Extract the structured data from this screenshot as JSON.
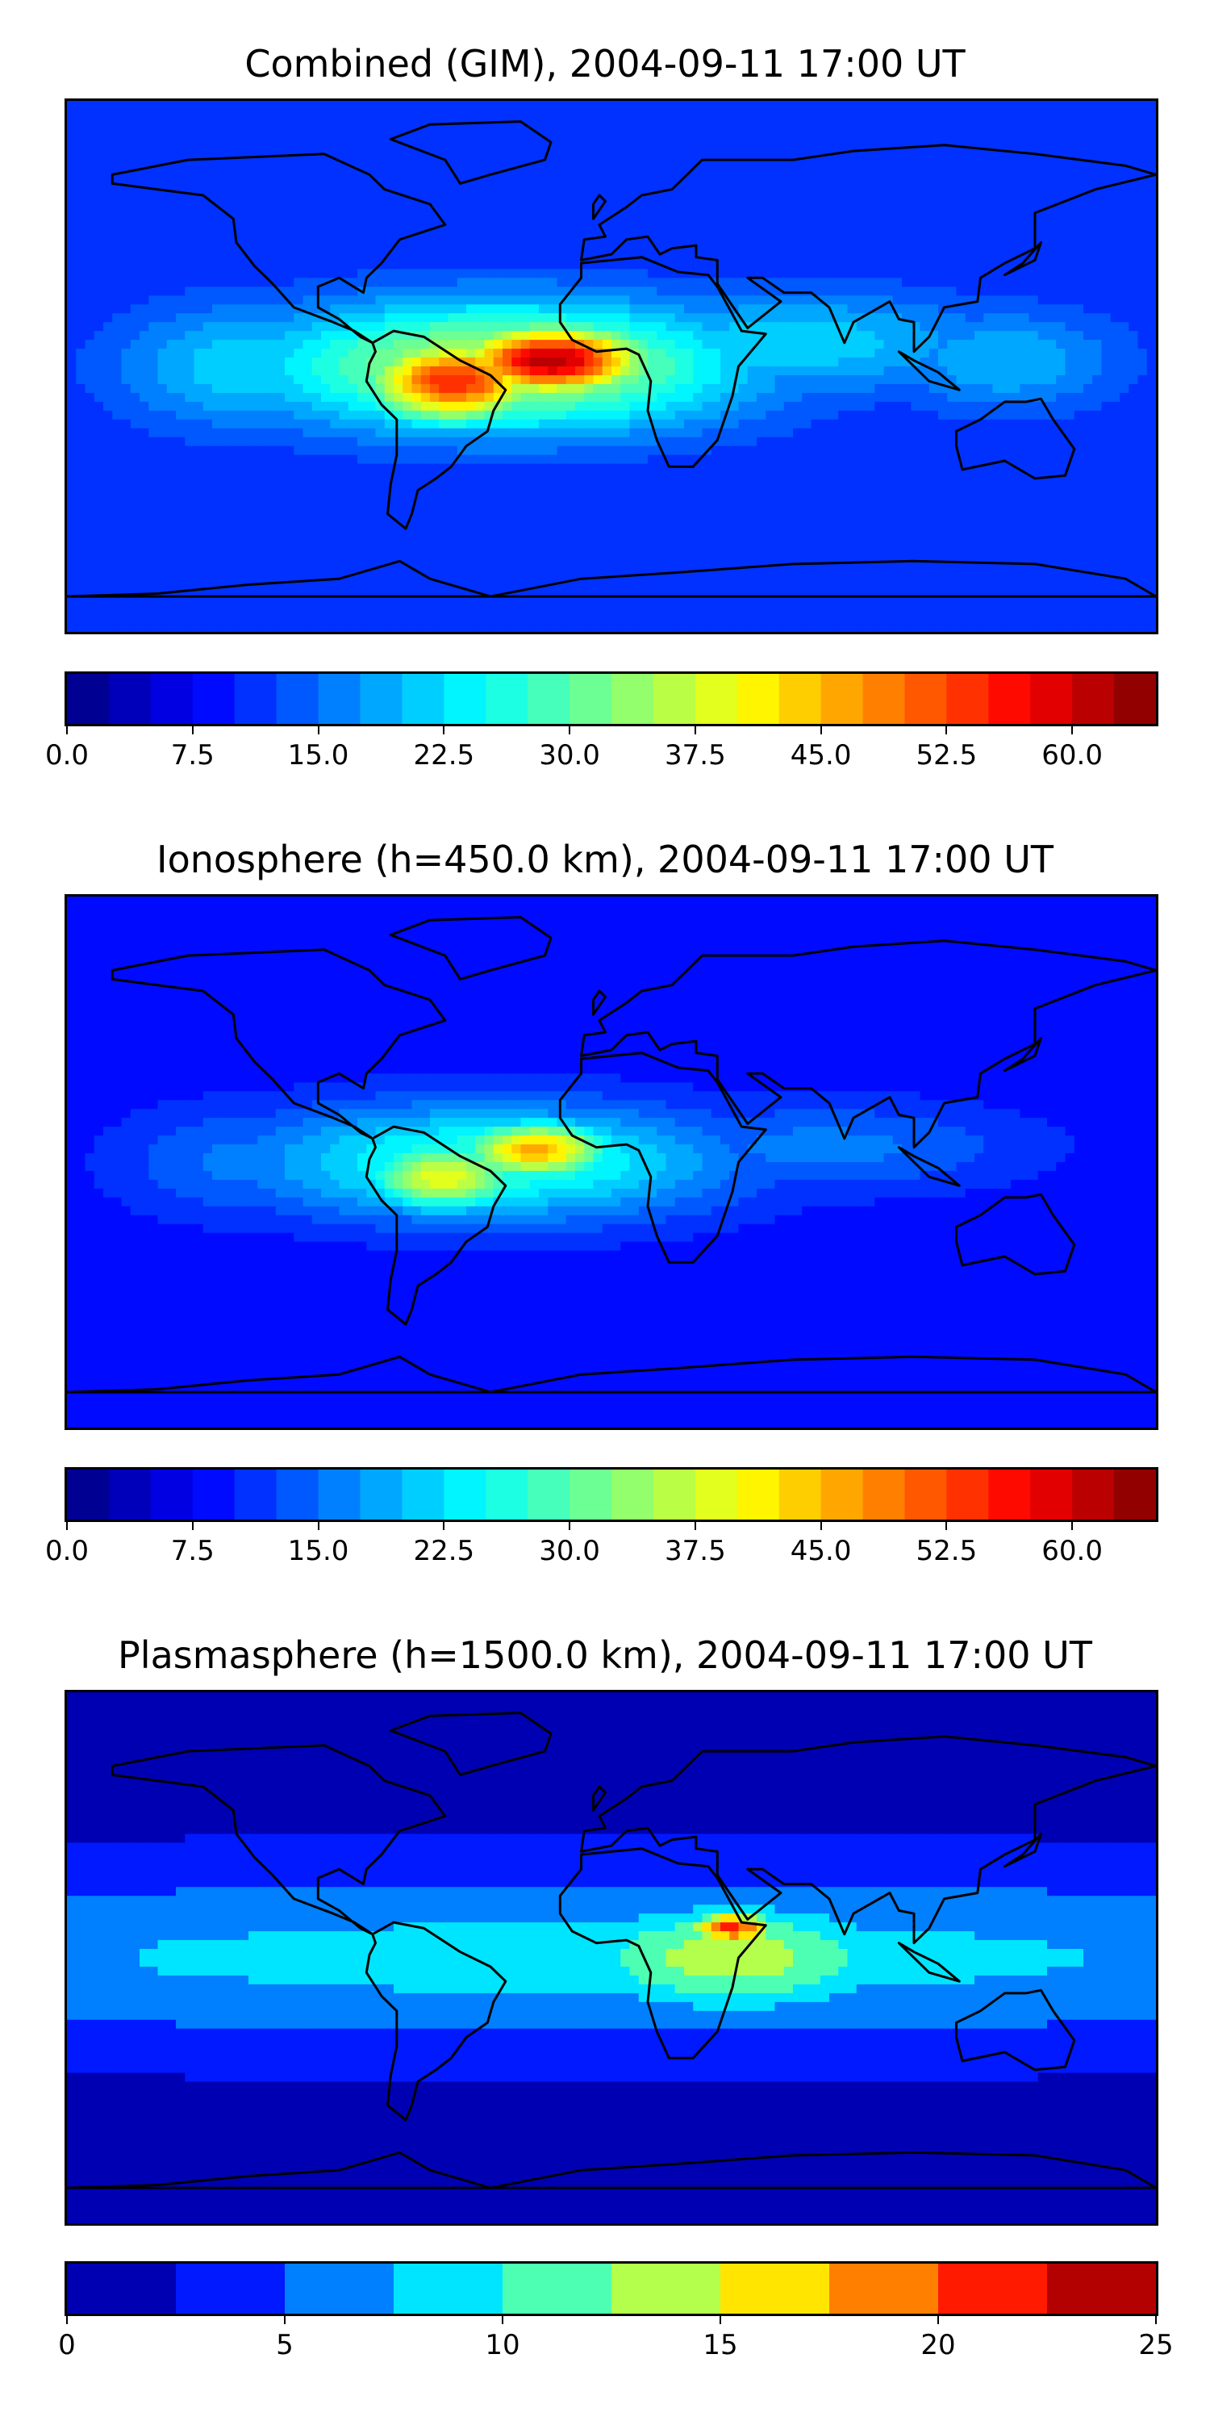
{
  "chart_data": [
    {
      "type": "heatmap",
      "title": "Combined (GIM), 2004-09-11 17:00 UT",
      "xlabel": "",
      "ylabel": "",
      "xlim": [
        -180,
        180
      ],
      "ylim": [
        -90,
        90
      ],
      "grid": false,
      "colorbar": {
        "vmin": 0,
        "vmax": 65,
        "levels": 26,
        "ticks": [
          0,
          7.5,
          15,
          22.5,
          30,
          37.5,
          45,
          52.5,
          60
        ],
        "tick_labels": [
          "0.0",
          "7.5",
          "15.0",
          "22.5",
          "30.0",
          "37.5",
          "45.0",
          "52.5",
          "60.0"
        ],
        "colormap": "jet"
      },
      "background_level": 10,
      "features": [
        {
          "name": "equatorial anomaly crest",
          "lon": -20,
          "lat": 2,
          "value": 62,
          "lon_radius": 32,
          "lat_radius": 12
        },
        {
          "name": "South America maximum",
          "lon": -52,
          "lat": -5,
          "value": 55,
          "lon_radius": 30,
          "lat_radius": 14
        },
        {
          "name": "Atlantic band",
          "lon": -35,
          "lat": 0,
          "value": 38,
          "lon_radius": 80,
          "lat_radius": 22
        },
        {
          "name": "Africa-Indian band",
          "lon": 60,
          "lat": 8,
          "value": 22,
          "lon_radius": 70,
          "lat_radius": 18
        },
        {
          "name": "Maritime Asia band",
          "lon": 130,
          "lat": 2,
          "value": 20,
          "lon_radius": 40,
          "lat_radius": 18
        },
        {
          "name": "Pacific band",
          "lon": -120,
          "lat": 0,
          "value": 22,
          "lon_radius": 45,
          "lat_radius": 22
        }
      ]
    },
    {
      "type": "heatmap",
      "title": "Ionosphere  (h=450.0 km), 2004-09-11 17:00 UT",
      "xlabel": "",
      "ylabel": "",
      "xlim": [
        -180,
        180
      ],
      "ylim": [
        -90,
        90
      ],
      "grid": false,
      "colorbar": {
        "vmin": 0,
        "vmax": 65,
        "levels": 26,
        "ticks": [
          0,
          7.5,
          15,
          22.5,
          30,
          37.5,
          45,
          52.5,
          60
        ],
        "tick_labels": [
          "0.0",
          "7.5",
          "15.0",
          "22.5",
          "30.0",
          "37.5",
          "45.0",
          "52.5",
          "60.0"
        ],
        "colormap": "jet"
      },
      "background_level": 8,
      "features": [
        {
          "name": "equatorial anomaly crest",
          "lon": -25,
          "lat": 4,
          "value": 46,
          "lon_radius": 26,
          "lat_radius": 10
        },
        {
          "name": "South America maximum",
          "lon": -55,
          "lat": -5,
          "value": 40,
          "lon_radius": 28,
          "lat_radius": 12
        },
        {
          "name": "Atlantic band",
          "lon": -40,
          "lat": 0,
          "value": 28,
          "lon_radius": 80,
          "lat_radius": 20
        },
        {
          "name": "Africa-Indian band",
          "lon": 70,
          "lat": 5,
          "value": 16,
          "lon_radius": 70,
          "lat_radius": 16
        },
        {
          "name": "Pacific band",
          "lon": -120,
          "lat": 0,
          "value": 16,
          "lon_radius": 45,
          "lat_radius": 20
        }
      ]
    },
    {
      "type": "heatmap",
      "title": "Plasmasphere (h=1500.0 km), 2004-09-11 17:00 UT",
      "xlabel": "",
      "ylabel": "",
      "xlim": [
        -180,
        180
      ],
      "ylim": [
        -90,
        90
      ],
      "grid": false,
      "colorbar": {
        "vmin": 0,
        "vmax": 25,
        "levels": 10,
        "ticks": [
          0,
          5,
          10,
          15,
          20,
          25
        ],
        "tick_labels": [
          "0",
          "5",
          "10",
          "15",
          "20",
          "25"
        ],
        "colormap": "jet"
      },
      "background_level": 1.5,
      "features": [
        {
          "name": "Horn of Africa maximum",
          "lon": 40,
          "lat": 10,
          "value": 21,
          "lon_radius": 16,
          "lat_radius": 6
        },
        {
          "name": "Africa-Indian ocean band",
          "lon": 40,
          "lat": 0,
          "value": 14,
          "lon_radius": 60,
          "lat_radius": 20
        },
        {
          "name": "Global equatorial belt",
          "lon": 0,
          "lat": 0,
          "value": 8.5,
          "lon_radius": 400,
          "lat_radius": 30
        },
        {
          "name": "Pacific cyan patch",
          "lon": -140,
          "lat": 0,
          "value": 9.5,
          "lon_radius": 25,
          "lat_radius": 12
        }
      ]
    }
  ]
}
